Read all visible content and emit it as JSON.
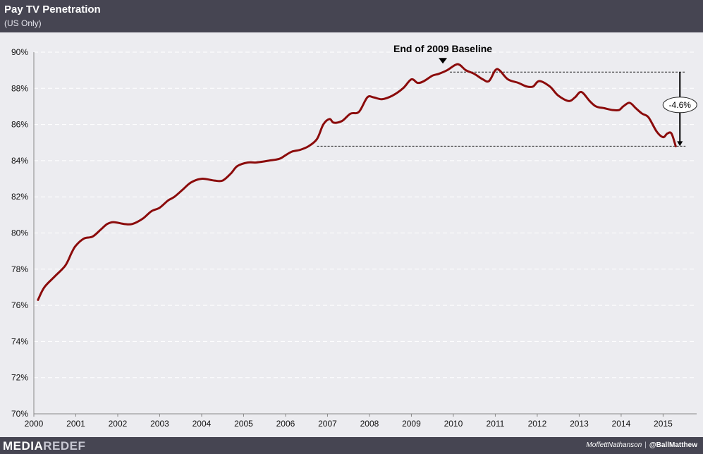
{
  "header": {
    "title": "Pay TV Penetration",
    "subtitle": "(US Only)"
  },
  "footer": {
    "logo_part1": "MEDIA",
    "logo_part2": "REDEF",
    "credit_firm": "MoffettNathanson",
    "credit_separator": "|",
    "credit_handle": "@BallMatthew"
  },
  "colors": {
    "header_bg": "#464552",
    "plot_bg": "#ececf0",
    "line": "#8b0b0b"
  },
  "chart_data": {
    "type": "line",
    "title": "Pay TV Penetration",
    "subtitle": "(US Only)",
    "xlabel": "",
    "ylabel": "",
    "xlim": [
      2000,
      2015.8
    ],
    "ylim": [
      70,
      90
    ],
    "grid": true,
    "x_ticks": [
      2000,
      2001,
      2002,
      2003,
      2004,
      2005,
      2006,
      2007,
      2008,
      2009,
      2010,
      2011,
      2012,
      2013,
      2014,
      2015
    ],
    "x_tick_labels": [
      "2000",
      "2001",
      "2002",
      "2003",
      "2004",
      "2005",
      "2006",
      "2007",
      "2008",
      "2009",
      "2010",
      "2011",
      "2012",
      "2013",
      "2014",
      "2015"
    ],
    "y_ticks": [
      70,
      72,
      74,
      76,
      78,
      80,
      82,
      84,
      86,
      88,
      90
    ],
    "y_tick_labels": [
      "70%",
      "72%",
      "74%",
      "76%",
      "78%",
      "80%",
      "82%",
      "84%",
      "86%",
      "88%",
      "90%"
    ],
    "series": [
      {
        "name": "Pay TV Penetration",
        "x": [
          2000.1,
          2000.25,
          2000.5,
          2000.75,
          2000.9,
          2001.0,
          2001.2,
          2001.4,
          2001.6,
          2001.75,
          2001.9,
          2002.15,
          2002.35,
          2002.6,
          2002.8,
          2003.0,
          2003.2,
          2003.35,
          2003.55,
          2003.75,
          2004.0,
          2004.3,
          2004.5,
          2004.7,
          2004.85,
          2005.1,
          2005.3,
          2005.6,
          2005.85,
          2006.0,
          2006.15,
          2006.35,
          2006.55,
          2006.75,
          2006.9,
          2007.05,
          2007.15,
          2007.35,
          2007.55,
          2007.75,
          2007.95,
          2008.1,
          2008.3,
          2008.55,
          2008.8,
          2009.0,
          2009.15,
          2009.3,
          2009.5,
          2009.65,
          2009.85,
          2010.05,
          2010.15,
          2010.3,
          2010.5,
          2010.7,
          2010.85,
          2011.0,
          2011.1,
          2011.3,
          2011.55,
          2011.75,
          2011.9,
          2012.05,
          2012.3,
          2012.5,
          2012.75,
          2012.9,
          2013.05,
          2013.25,
          2013.4,
          2013.6,
          2013.8,
          2013.95,
          2014.05,
          2014.2,
          2014.35,
          2014.5,
          2014.65,
          2014.85,
          2015.0,
          2015.1,
          2015.2,
          2015.3
        ],
        "values": [
          76.3,
          77.0,
          77.6,
          78.2,
          78.9,
          79.3,
          79.7,
          79.8,
          80.2,
          80.5,
          80.6,
          80.5,
          80.5,
          80.8,
          81.2,
          81.4,
          81.8,
          82.0,
          82.4,
          82.8,
          83.0,
          82.9,
          82.9,
          83.3,
          83.7,
          83.9,
          83.9,
          84.0,
          84.1,
          84.3,
          84.5,
          84.6,
          84.8,
          85.2,
          86.0,
          86.3,
          86.1,
          86.2,
          86.6,
          86.7,
          87.5,
          87.5,
          87.4,
          87.6,
          88.0,
          88.5,
          88.3,
          88.4,
          88.7,
          88.8,
          89.0,
          89.3,
          89.3,
          89.0,
          88.8,
          88.5,
          88.4,
          89.0,
          89.0,
          88.5,
          88.3,
          88.1,
          88.1,
          88.4,
          88.1,
          87.6,
          87.3,
          87.5,
          87.8,
          87.3,
          87.0,
          86.9,
          86.8,
          86.8,
          87.0,
          87.2,
          86.9,
          86.6,
          86.4,
          85.6,
          85.3,
          85.5,
          85.5,
          84.8
        ]
      }
    ],
    "annotations": {
      "baseline_label": "End of 2009 Baseline",
      "baseline_x": 2009.75,
      "baseline_value": 88.9,
      "end_value": 84.8,
      "change_label": "-4.6%"
    }
  }
}
